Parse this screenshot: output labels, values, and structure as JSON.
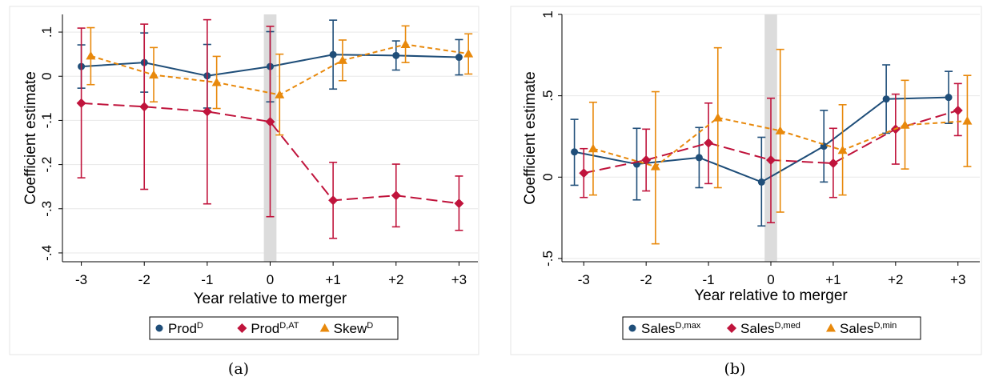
{
  "panels": [
    {
      "caption": "(a)",
      "chart_data": {
        "type": "line",
        "xlabel": "Year relative to merger",
        "ylabel": "Coefficient estimate",
        "x": [
          -3,
          -2,
          -1,
          0,
          1,
          2,
          3
        ],
        "xtick_labels": [
          "-3",
          "-2",
          "-1",
          "0",
          "+1",
          "+2",
          "+3"
        ],
        "ylim": [
          -0.42,
          0.14
        ],
        "yticks": [
          0.1,
          0,
          -0.1,
          -0.2,
          -0.3,
          -0.4
        ],
        "ytick_labels": [
          ".1",
          "0",
          "-.1",
          "-.2",
          "-.3",
          "-.4"
        ],
        "grid": true,
        "event_band": [
          -0.1,
          0.1
        ],
        "legend_position": "bottom",
        "series": [
          {
            "base": "Prod",
            "sup": "D",
            "color": "#1f4e79",
            "marker": "circle",
            "dash": "solid",
            "offset": 0,
            "values": [
              0.022,
              0.031,
              0.001,
              0.022,
              0.049,
              0.047,
              0.043
            ],
            "ci_low": [
              -0.027,
              -0.036,
              -0.072,
              -0.058,
              -0.029,
              0.014,
              0.003
            ],
            "ci_high": [
              0.071,
              0.098,
              0.072,
              0.101,
              0.127,
              0.08,
              0.083
            ]
          },
          {
            "base": "Prod",
            "sup": "D,AT",
            "color": "#c0143c",
            "marker": "diamond",
            "dash": "long",
            "offset": 0,
            "values": [
              -0.061,
              -0.069,
              -0.08,
              -0.103,
              -0.281,
              -0.27,
              -0.288
            ],
            "ci_low": [
              -0.23,
              -0.256,
              -0.289,
              -0.318,
              -0.367,
              -0.341,
              -0.349
            ],
            "ci_high": [
              0.109,
              0.118,
              0.128,
              0.113,
              -0.195,
              -0.199,
              -0.226
            ]
          },
          {
            "base": "Skew",
            "sup": "D",
            "color": "#e8890c",
            "marker": "triangle",
            "dash": "short",
            "offset": 0.15,
            "values": [
              0.046,
              0.003,
              -0.014,
              -0.042,
              0.036,
              0.072,
              0.051
            ],
            "ci_low": [
              -0.019,
              -0.058,
              -0.073,
              -0.133,
              -0.01,
              0.031,
              0.005
            ],
            "ci_high": [
              0.11,
              0.065,
              0.045,
              0.05,
              0.082,
              0.114,
              0.096
            ]
          }
        ]
      }
    },
    {
      "caption": "(b)",
      "chart_data": {
        "type": "line",
        "xlabel": "Year relative to merger",
        "ylabel": "Coefficient estimate",
        "x": [
          -3,
          -2,
          -1,
          0,
          1,
          2,
          3
        ],
        "xtick_labels": [
          "-3",
          "-2",
          "-1",
          "0",
          "+1",
          "+2",
          "+3"
        ],
        "ylim": [
          -0.52,
          1.0
        ],
        "yticks": [
          1,
          0.5,
          0,
          -0.5
        ],
        "ytick_labels": [
          "1",
          ".5",
          "0",
          "-.5"
        ],
        "grid": true,
        "event_band": [
          -0.1,
          0.1
        ],
        "legend_position": "bottom",
        "series": [
          {
            "base": "Sales",
            "sup": "D,max",
            "color": "#1f4e79",
            "marker": "circle",
            "dash": "solid",
            "offset": -0.15,
            "values": [
              0.155,
              0.08,
              0.12,
              -0.03,
              0.19,
              0.48,
              0.49
            ],
            "ci_low": [
              -0.05,
              -0.14,
              -0.065,
              -0.3,
              -0.03,
              0.27,
              0.33
            ],
            "ci_high": [
              0.355,
              0.3,
              0.305,
              0.245,
              0.41,
              0.69,
              0.65
            ]
          },
          {
            "base": "Sales",
            "sup": "D,med",
            "color": "#c0143c",
            "marker": "diamond",
            "dash": "long",
            "offset": 0,
            "values": [
              0.025,
              0.105,
              0.21,
              0.105,
              0.085,
              0.295,
              0.41
            ],
            "ci_low": [
              -0.125,
              -0.085,
              -0.04,
              -0.28,
              -0.125,
              0.08,
              0.255
            ],
            "ci_high": [
              0.175,
              0.295,
              0.455,
              0.485,
              0.3,
              0.51,
              0.575
            ]
          },
          {
            "base": "Sales",
            "sup": "D,min",
            "color": "#e8890c",
            "marker": "triangle",
            "dash": "short",
            "offset": 0.15,
            "values": [
              0.175,
              0.065,
              0.365,
              0.285,
              0.165,
              0.32,
              0.345
            ],
            "ci_low": [
              -0.11,
              -0.41,
              -0.065,
              -0.215,
              -0.11,
              0.05,
              0.065
            ],
            "ci_high": [
              0.46,
              0.525,
              0.795,
              0.785,
              0.445,
              0.595,
              0.625
            ]
          }
        ]
      }
    }
  ]
}
